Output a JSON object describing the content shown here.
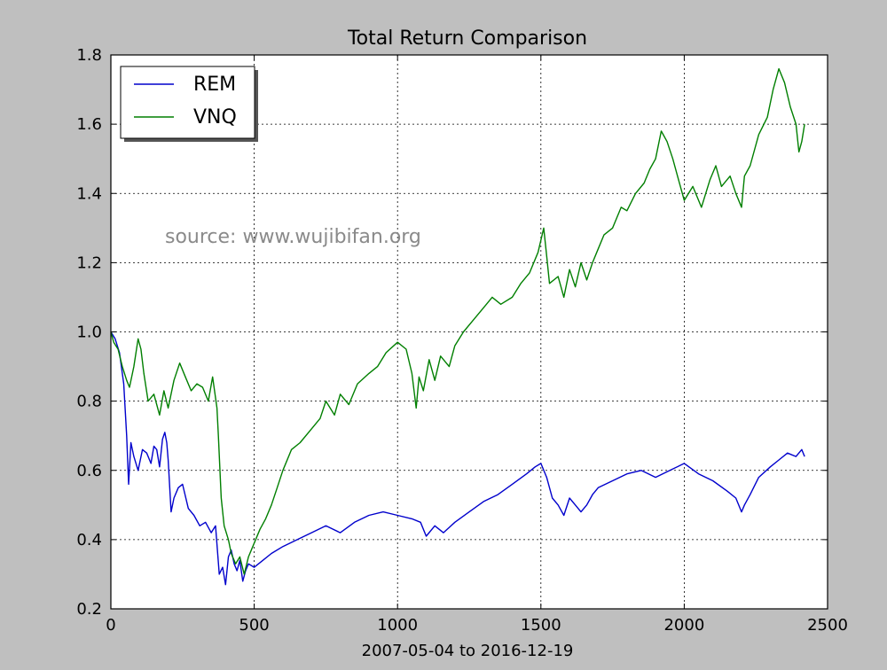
{
  "chart_data": {
    "type": "line",
    "title": "Total Return Comparison",
    "xlabel": "2007-05-04 to 2016-12-19",
    "ylabel": "",
    "xlim": [
      0,
      2500
    ],
    "ylim": [
      0.2,
      1.8
    ],
    "xticks": [
      0,
      500,
      1000,
      1500,
      2000,
      2500
    ],
    "yticks": [
      0.2,
      0.4,
      0.6,
      0.8,
      1.0,
      1.2,
      1.4,
      1.6,
      1.8
    ],
    "xtick_labels": [
      "0",
      "500",
      "1000",
      "1500",
      "2000",
      "2500"
    ],
    "ytick_labels": [
      "0.2",
      "0.4",
      "0.6",
      "0.8",
      "1.0",
      "1.2",
      "1.4",
      "1.6",
      "1.8"
    ],
    "grid": true,
    "legend_position": "top-left",
    "annotation": "source: www.wujibifan.org",
    "series": [
      {
        "name": "REM",
        "color": "#0000cc",
        "x": [
          0,
          15,
          30,
          45,
          55,
          62,
          70,
          80,
          95,
          110,
          125,
          140,
          150,
          160,
          170,
          180,
          188,
          195,
          200,
          210,
          220,
          235,
          250,
          270,
          290,
          310,
          330,
          350,
          365,
          378,
          390,
          400,
          410,
          420,
          430,
          440,
          450,
          460,
          470,
          480,
          500,
          530,
          560,
          600,
          650,
          700,
          750,
          800,
          850,
          900,
          950,
          1000,
          1050,
          1080,
          1100,
          1130,
          1160,
          1200,
          1250,
          1300,
          1350,
          1400,
          1450,
          1480,
          1500,
          1520,
          1540,
          1560,
          1580,
          1600,
          1620,
          1640,
          1660,
          1680,
          1700,
          1750,
          1800,
          1850,
          1900,
          1950,
          2000,
          2050,
          2100,
          2150,
          2180,
          2200,
          2210,
          2230,
          2260,
          2300,
          2330,
          2360,
          2390,
          2410,
          2420
        ],
        "y": [
          1.0,
          0.98,
          0.94,
          0.85,
          0.7,
          0.56,
          0.68,
          0.64,
          0.6,
          0.66,
          0.65,
          0.62,
          0.67,
          0.66,
          0.61,
          0.69,
          0.71,
          0.68,
          0.63,
          0.48,
          0.52,
          0.55,
          0.56,
          0.49,
          0.47,
          0.44,
          0.45,
          0.42,
          0.44,
          0.3,
          0.32,
          0.27,
          0.35,
          0.37,
          0.33,
          0.31,
          0.34,
          0.28,
          0.31,
          0.33,
          0.32,
          0.34,
          0.36,
          0.38,
          0.4,
          0.42,
          0.44,
          0.42,
          0.45,
          0.47,
          0.48,
          0.47,
          0.46,
          0.45,
          0.41,
          0.44,
          0.42,
          0.45,
          0.48,
          0.51,
          0.53,
          0.56,
          0.59,
          0.61,
          0.62,
          0.58,
          0.52,
          0.5,
          0.47,
          0.52,
          0.5,
          0.48,
          0.5,
          0.53,
          0.55,
          0.57,
          0.59,
          0.6,
          0.58,
          0.6,
          0.62,
          0.59,
          0.57,
          0.54,
          0.52,
          0.48,
          0.5,
          0.53,
          0.58,
          0.61,
          0.63,
          0.65,
          0.64,
          0.66,
          0.64
        ]
      },
      {
        "name": "VNQ",
        "color": "#007f00",
        "x": [
          0,
          10,
          25,
          40,
          55,
          65,
          80,
          95,
          105,
          115,
          130,
          150,
          170,
          185,
          200,
          220,
          240,
          260,
          280,
          300,
          320,
          340,
          355,
          370,
          375,
          385,
          395,
          410,
          420,
          435,
          450,
          465,
          480,
          500,
          520,
          540,
          560,
          580,
          600,
          630,
          660,
          700,
          730,
          750,
          780,
          800,
          830,
          860,
          900,
          930,
          960,
          1000,
          1030,
          1050,
          1065,
          1075,
          1090,
          1110,
          1130,
          1150,
          1180,
          1200,
          1230,
          1260,
          1300,
          1330,
          1360,
          1400,
          1430,
          1460,
          1490,
          1510,
          1520,
          1530,
          1560,
          1580,
          1600,
          1620,
          1640,
          1660,
          1680,
          1700,
          1720,
          1750,
          1780,
          1800,
          1830,
          1860,
          1880,
          1900,
          1920,
          1940,
          1960,
          1980,
          2000,
          2030,
          2060,
          2090,
          2110,
          2130,
          2160,
          2180,
          2200,
          2210,
          2230,
          2260,
          2290,
          2310,
          2330,
          2350,
          2370,
          2390,
          2400,
          2410,
          2420
        ],
        "y": [
          1.0,
          0.97,
          0.95,
          0.9,
          0.86,
          0.84,
          0.9,
          0.98,
          0.95,
          0.88,
          0.8,
          0.82,
          0.76,
          0.83,
          0.78,
          0.86,
          0.91,
          0.87,
          0.83,
          0.85,
          0.84,
          0.8,
          0.87,
          0.78,
          0.7,
          0.52,
          0.44,
          0.4,
          0.36,
          0.33,
          0.35,
          0.3,
          0.35,
          0.39,
          0.43,
          0.46,
          0.5,
          0.55,
          0.6,
          0.66,
          0.68,
          0.72,
          0.75,
          0.8,
          0.76,
          0.82,
          0.79,
          0.85,
          0.88,
          0.9,
          0.94,
          0.97,
          0.95,
          0.88,
          0.78,
          0.87,
          0.83,
          0.92,
          0.86,
          0.93,
          0.9,
          0.96,
          1.0,
          1.03,
          1.07,
          1.1,
          1.08,
          1.1,
          1.14,
          1.17,
          1.23,
          1.3,
          1.22,
          1.14,
          1.16,
          1.1,
          1.18,
          1.13,
          1.2,
          1.15,
          1.2,
          1.24,
          1.28,
          1.3,
          1.36,
          1.35,
          1.4,
          1.43,
          1.47,
          1.5,
          1.58,
          1.55,
          1.5,
          1.44,
          1.38,
          1.42,
          1.36,
          1.44,
          1.48,
          1.42,
          1.45,
          1.4,
          1.36,
          1.45,
          1.48,
          1.57,
          1.62,
          1.7,
          1.76,
          1.72,
          1.65,
          1.6,
          1.52,
          1.55,
          1.6
        ]
      }
    ]
  }
}
